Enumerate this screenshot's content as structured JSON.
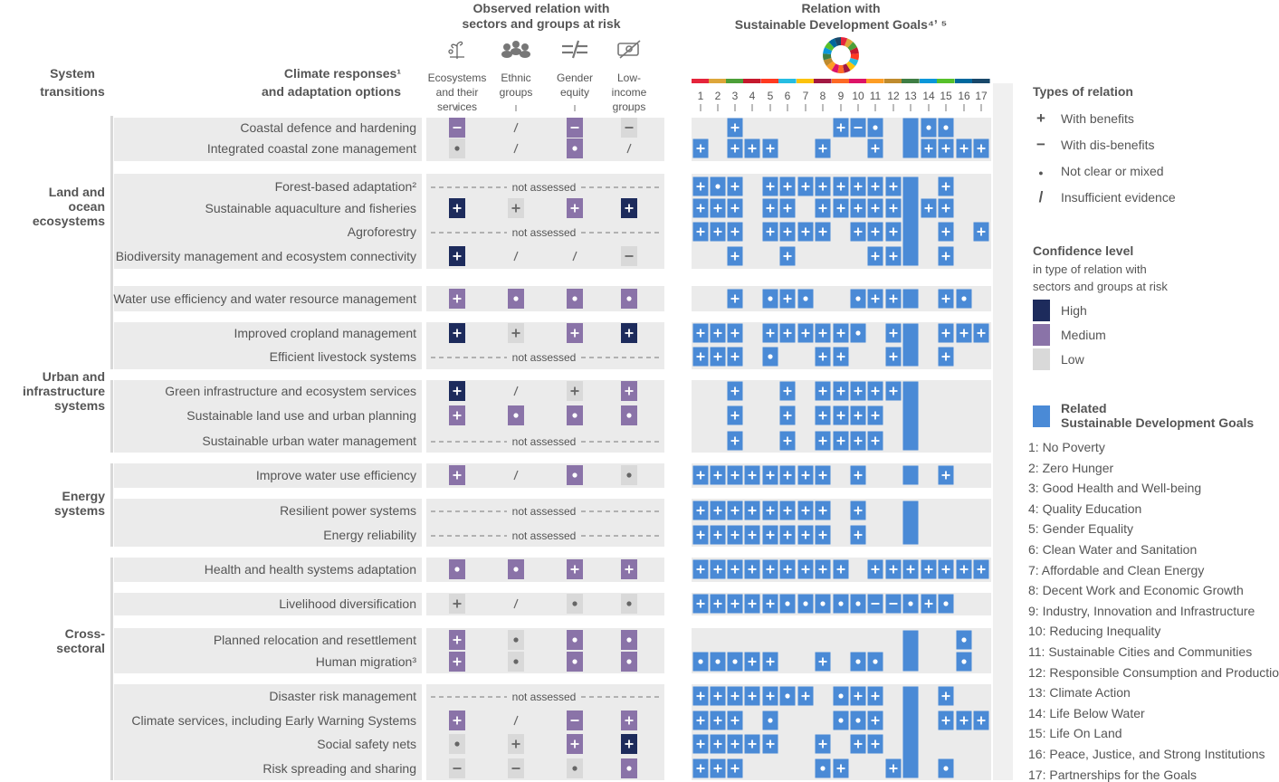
{
  "header": {
    "system_transitions": [
      "System",
      "transitions"
    ],
    "responses": [
      "Climate responses¹",
      "and adaptation options"
    ],
    "observed": [
      "Observed relation with",
      "sectors and groups at risk"
    ],
    "sdg_title": [
      "Relation with",
      "Sustainable Development Goals⁴ʼ ⁵"
    ]
  },
  "group_columns": [
    {
      "icon": "plant-icon",
      "label": [
        "Ecosystems",
        "and their",
        "services"
      ]
    },
    {
      "icon": "people-group-icon",
      "label": [
        "Ethnic",
        "groups"
      ]
    },
    {
      "icon": "equal-unequal-icon",
      "label": [
        "Gender",
        "equity"
      ]
    },
    {
      "icon": "low-income-icon",
      "label": [
        "Low-",
        "income",
        "groups"
      ]
    }
  ],
  "sdg_numbers": [
    "1",
    "2",
    "3",
    "4",
    "5",
    "6",
    "7",
    "8",
    "9",
    "10",
    "11",
    "12",
    "13",
    "14",
    "15",
    "16",
    "17"
  ],
  "colors": {
    "high": "#1d2b5c",
    "medium": "#8a73a8",
    "low": "#d9d9d9",
    "sdg": "#4a8ad6",
    "band": "#ebebeb",
    "side": "#d8d8d8",
    "text": "#444444",
    "sdg_strip": [
      "#e5243b",
      "#dda63a",
      "#4c9f38",
      "#c5192d",
      "#ff3a21",
      "#26bde2",
      "#fcc30b",
      "#a21942",
      "#fd6925",
      "#dd1367",
      "#fd9d24",
      "#bf8b2e",
      "#3f7e44",
      "#0a97d9",
      "#56c02b",
      "#00689d",
      "#19486a"
    ]
  },
  "not_assessed_label": "not assessed",
  "systems": [
    {
      "label": [
        "Land and",
        "ocean",
        "ecosystems"
      ]
    },
    {
      "label": [
        "Urban and",
        "infrastructure",
        "systems"
      ]
    },
    {
      "label": [
        "Energy",
        "systems"
      ]
    },
    {
      "label": [
        "Cross-",
        "sectoral"
      ]
    }
  ],
  "chart_data": {
    "type": "table",
    "rows": [
      {
        "option": "Coastal defence and hardening",
        "groups": [
          "-:medium",
          "/",
          "-:medium",
          "-:low"
        ],
        "sdg": [
          "",
          "",
          "+",
          "",
          "",
          "",
          "",
          "",
          "+",
          "-",
          "o",
          "",
          "b",
          "o",
          "o",
          "",
          ""
        ]
      },
      {
        "option": "Integrated coastal zone management",
        "groups": [
          "o:low",
          "/",
          "o:medium",
          "/"
        ],
        "sdg": [
          "+",
          "",
          "+",
          "+",
          "+",
          "",
          "",
          "+",
          "",
          "",
          "+",
          "",
          "b",
          "+",
          "+",
          "+",
          "+"
        ]
      },
      {
        "option": "Forest-based adaptation²",
        "groups": "na",
        "sdg": [
          "+",
          "o",
          "+",
          "",
          "+",
          "+",
          "+",
          "+",
          "+",
          "+",
          "+",
          "+",
          "b",
          "",
          "+",
          "",
          ""
        ]
      },
      {
        "option": "Sustainable aquaculture and fisheries",
        "groups": [
          "+:high",
          "+:low",
          "+:medium",
          "+:high"
        ],
        "sdg": [
          "+",
          "+",
          "+",
          "",
          "+",
          "+",
          "",
          "+",
          "+",
          "+",
          "+",
          "+",
          "b",
          "+",
          "+",
          "",
          ""
        ]
      },
      {
        "option": "Agroforestry",
        "groups": "na",
        "sdg": [
          "+",
          "+",
          "+",
          "",
          "+",
          "+",
          "+",
          "+",
          "",
          "+",
          "+",
          "+",
          "b",
          "",
          "+",
          "",
          "+"
        ]
      },
      {
        "option": "Biodiversity management and ecosystem connectivity",
        "groups": [
          "+:high",
          "/",
          "/",
          "-:low"
        ],
        "sdg": [
          "",
          "",
          "+",
          "",
          "",
          "+",
          "",
          "",
          "",
          "",
          "+",
          "+",
          "b",
          "",
          "+",
          "",
          ""
        ]
      },
      {
        "option": "Water use efficiency and water resource management",
        "groups": [
          "+:medium",
          "o:medium",
          "o:medium",
          "o:medium"
        ],
        "sdg": [
          "",
          "",
          "+",
          "",
          "o",
          "+",
          "o",
          "",
          "",
          "o",
          "+",
          "+",
          "b",
          "",
          "+",
          "o",
          ""
        ]
      },
      {
        "option": "Improved cropland management",
        "groups": [
          "+:high",
          "+:low",
          "+:medium",
          "+:high"
        ],
        "sdg": [
          "+",
          "+",
          "+",
          "",
          "+",
          "+",
          "+",
          "+",
          "+",
          "o",
          "",
          "+",
          "b",
          "",
          "+",
          "+",
          "+"
        ]
      },
      {
        "option": "Efficient livestock systems",
        "groups": "na",
        "sdg": [
          "+",
          "+",
          "+",
          "",
          "o",
          "",
          "",
          "+",
          "+",
          "",
          "",
          "+",
          "b",
          "",
          "+",
          "",
          ""
        ]
      },
      {
        "option": "Green infrastructure and ecosystem services",
        "groups": [
          "+:high",
          "/",
          "+:low",
          "+:medium"
        ],
        "sdg": [
          "",
          "",
          "+",
          "",
          "",
          "+",
          "",
          "+",
          "+",
          "+",
          "+",
          "+",
          "b",
          "",
          "",
          "",
          ""
        ]
      },
      {
        "option": "Sustainable land use and urban planning",
        "groups": [
          "+:medium",
          "o:medium",
          "o:medium",
          "o:medium"
        ],
        "sdg": [
          "",
          "",
          "+",
          "",
          "",
          "+",
          "",
          "+",
          "+",
          "+",
          "+",
          "",
          "b",
          "",
          "",
          "",
          ""
        ]
      },
      {
        "option": "Sustainable urban water management",
        "groups": "na",
        "sdg": [
          "",
          "",
          "+",
          "",
          "",
          "+",
          "",
          "+",
          "+",
          "+",
          "+",
          "",
          "b",
          "",
          "",
          "",
          ""
        ]
      },
      {
        "option": "Improve water use efficiency",
        "groups": [
          "+:medium",
          "/",
          "o:medium",
          "o:low"
        ],
        "sdg": [
          "+",
          "+",
          "+",
          "+",
          "+",
          "+",
          "+",
          "+",
          "",
          "+",
          "",
          "",
          "b",
          "",
          "+",
          "",
          ""
        ]
      },
      {
        "option": "Resilient power systems",
        "groups": "na",
        "sdg": [
          "+",
          "+",
          "+",
          "+",
          "+",
          "+",
          "+",
          "+",
          "",
          "+",
          "",
          "",
          "b",
          "",
          "",
          "",
          ""
        ]
      },
      {
        "option": "Energy reliability",
        "groups": "na",
        "sdg": [
          "+",
          "+",
          "+",
          "+",
          "+",
          "+",
          "+",
          "+",
          "",
          "+",
          "",
          "",
          "b",
          "",
          "",
          "",
          ""
        ]
      },
      {
        "option": "Health and health systems adaptation",
        "groups": [
          "o:medium",
          "o:medium",
          "+:medium",
          "+:medium"
        ],
        "sdg": [
          "+",
          "+",
          "+",
          "+",
          "+",
          "+",
          "+",
          "+",
          "+",
          "",
          "+",
          "+",
          "+",
          "+",
          "+",
          "+",
          "+"
        ]
      },
      {
        "option": "Livelihood diversification",
        "groups": [
          "+:low",
          "/",
          "o:low",
          "o:low"
        ],
        "sdg": [
          "+",
          "+",
          "+",
          "+",
          "+",
          "o",
          "o",
          "o",
          "o",
          "o",
          "-",
          "-",
          "o",
          "+",
          "o",
          "",
          ""
        ]
      },
      {
        "option": "Planned relocation and resettlement",
        "groups": [
          "+:medium",
          "o:low",
          "o:medium",
          "o:medium"
        ],
        "sdg": [
          "",
          "",
          "",
          "",
          "",
          "",
          "",
          "",
          "",
          "",
          "",
          "",
          "b",
          "",
          "",
          "o",
          ""
        ]
      },
      {
        "option": "Human migration³",
        "groups": [
          "+:medium",
          "o:low",
          "o:medium",
          "o:medium"
        ],
        "sdg": [
          "o",
          "o",
          "o",
          "+",
          "+",
          "",
          "",
          "+",
          "",
          "o",
          "o",
          "",
          "b",
          "",
          "",
          "o",
          ""
        ]
      },
      {
        "option": "Disaster risk management",
        "groups": "na",
        "sdg": [
          "+",
          "+",
          "+",
          "+",
          "+",
          "o",
          "+",
          "",
          "o",
          "+",
          "+",
          "",
          "b",
          "",
          "+",
          "",
          ""
        ]
      },
      {
        "option": "Climate services, including Early Warning Systems",
        "groups": [
          "+:medium",
          "/",
          "-:medium",
          "+:medium"
        ],
        "sdg": [
          "+",
          "+",
          "+",
          "",
          "o",
          "",
          "",
          "",
          "o",
          "o",
          "+",
          "",
          "b",
          "",
          "+",
          "+",
          "+"
        ]
      },
      {
        "option": "Social safety nets",
        "groups": [
          "o:low",
          "+:low",
          "+:medium",
          "+:high"
        ],
        "sdg": [
          "+",
          "+",
          "+",
          "+",
          "+",
          "",
          "",
          "+",
          "",
          "+",
          "+",
          "",
          "b",
          "",
          "",
          "",
          ""
        ]
      },
      {
        "option": "Risk spreading and sharing",
        "groups": [
          "-:low",
          "-:low",
          "o:low",
          "o:medium"
        ],
        "sdg": [
          "+",
          "+",
          "+",
          "",
          "",
          "",
          "",
          "o",
          "+",
          "",
          "",
          "+",
          "b",
          "",
          "o",
          "",
          ""
        ]
      }
    ]
  },
  "legend": {
    "types_title": "Types of relation",
    "types": [
      {
        "symbol": "+",
        "label": "With benefits"
      },
      {
        "symbol": "−",
        "label": "With dis-benefits"
      },
      {
        "symbol": "●",
        "label": "Not clear or mixed"
      },
      {
        "symbol": "/",
        "label": "Insufficient evidence"
      }
    ],
    "confidence_title": "Confidence level",
    "confidence_sub": [
      "in type of relation with",
      "sectors and groups at risk"
    ],
    "confidence": [
      {
        "key": "high",
        "label": "High"
      },
      {
        "key": "medium",
        "label": "Medium"
      },
      {
        "key": "low",
        "label": "Low"
      }
    ],
    "related_title": [
      "Related",
      "Sustainable Development Goals"
    ],
    "sdg_list": [
      "1: No Poverty",
      "2: Zero Hunger",
      "3: Good Health and Well-being",
      "4: Quality Education",
      "5: Gender Equality",
      "6: Clean Water and Sanitation",
      "7: Affordable and Clean Energy",
      "8: Decent Work and Economic Growth",
      "9: Industry, Innovation and Infrastructure",
      "10: Reducing Inequality",
      "11: Sustainable Cities and Communities",
      "12: Responsible Consumption and Productio",
      "13: Climate Action",
      "14: Life Below Water",
      "15: Life On Land",
      "16: Peace, Justice, and Strong Institutions",
      "17: Partnerships for the Goals"
    ]
  }
}
